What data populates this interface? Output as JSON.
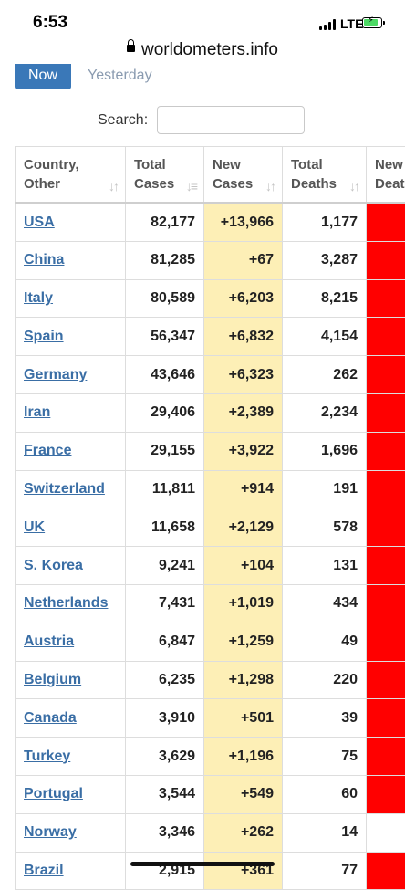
{
  "status_bar": {
    "time": "6:53",
    "network": "LTE"
  },
  "browser": {
    "url": "worldometers.info"
  },
  "tabs": [
    {
      "label": "Now",
      "active": true
    },
    {
      "label": "Yesterday",
      "active": false
    }
  ],
  "search": {
    "label": "Search:",
    "value": ""
  },
  "table": {
    "columns": [
      {
        "line1": "Country,",
        "line2": "Other",
        "sort": "↓↑"
      },
      {
        "line1": "Total",
        "line2": "Cases",
        "sort": "↓≡"
      },
      {
        "line1": "New",
        "line2": "Cases",
        "sort": "↓↑"
      },
      {
        "line1": "Total",
        "line2": "Deaths",
        "sort": "↓↑"
      },
      {
        "line1": "New",
        "line2": "Deat",
        "sort": ""
      }
    ],
    "rows": [
      {
        "country": "USA",
        "total_cases": "82,177",
        "new_cases": "+13,966",
        "total_deaths": "1,177",
        "new_deaths_highlight": true
      },
      {
        "country": "China",
        "total_cases": "81,285",
        "new_cases": "+67",
        "total_deaths": "3,287",
        "new_deaths_highlight": true
      },
      {
        "country": "Italy",
        "total_cases": "80,589",
        "new_cases": "+6,203",
        "total_deaths": "8,215",
        "new_deaths_highlight": true
      },
      {
        "country": "Spain",
        "total_cases": "56,347",
        "new_cases": "+6,832",
        "total_deaths": "4,154",
        "new_deaths_highlight": true
      },
      {
        "country": "Germany",
        "total_cases": "43,646",
        "new_cases": "+6,323",
        "total_deaths": "262",
        "new_deaths_highlight": true
      },
      {
        "country": "Iran",
        "total_cases": "29,406",
        "new_cases": "+2,389",
        "total_deaths": "2,234",
        "new_deaths_highlight": true
      },
      {
        "country": "France",
        "total_cases": "29,155",
        "new_cases": "+3,922",
        "total_deaths": "1,696",
        "new_deaths_highlight": true
      },
      {
        "country": "Switzerland",
        "total_cases": "11,811",
        "new_cases": "+914",
        "total_deaths": "191",
        "new_deaths_highlight": true
      },
      {
        "country": "UK",
        "total_cases": "11,658",
        "new_cases": "+2,129",
        "total_deaths": "578",
        "new_deaths_highlight": true
      },
      {
        "country": "S. Korea",
        "total_cases": "9,241",
        "new_cases": "+104",
        "total_deaths": "131",
        "new_deaths_highlight": true
      },
      {
        "country": "Netherlands",
        "total_cases": "7,431",
        "new_cases": "+1,019",
        "total_deaths": "434",
        "new_deaths_highlight": true
      },
      {
        "country": "Austria",
        "total_cases": "6,847",
        "new_cases": "+1,259",
        "total_deaths": "49",
        "new_deaths_highlight": true
      },
      {
        "country": "Belgium",
        "total_cases": "6,235",
        "new_cases": "+1,298",
        "total_deaths": "220",
        "new_deaths_highlight": true
      },
      {
        "country": "Canada",
        "total_cases": "3,910",
        "new_cases": "+501",
        "total_deaths": "39",
        "new_deaths_highlight": true
      },
      {
        "country": "Turkey",
        "total_cases": "3,629",
        "new_cases": "+1,196",
        "total_deaths": "75",
        "new_deaths_highlight": true
      },
      {
        "country": "Portugal",
        "total_cases": "3,544",
        "new_cases": "+549",
        "total_deaths": "60",
        "new_deaths_highlight": true
      },
      {
        "country": "Norway",
        "total_cases": "3,346",
        "new_cases": "+262",
        "total_deaths": "14",
        "new_deaths_highlight": false
      },
      {
        "country": "Brazil",
        "total_cases": "2,915",
        "new_cases": "+361",
        "total_deaths": "77",
        "new_deaths_highlight": true
      }
    ]
  },
  "colors": {
    "new_cases_bg": "#fdefb6",
    "new_deaths_bg": "#ff0000",
    "link": "#3a6ea5",
    "active_tab": "#3a78b8"
  }
}
